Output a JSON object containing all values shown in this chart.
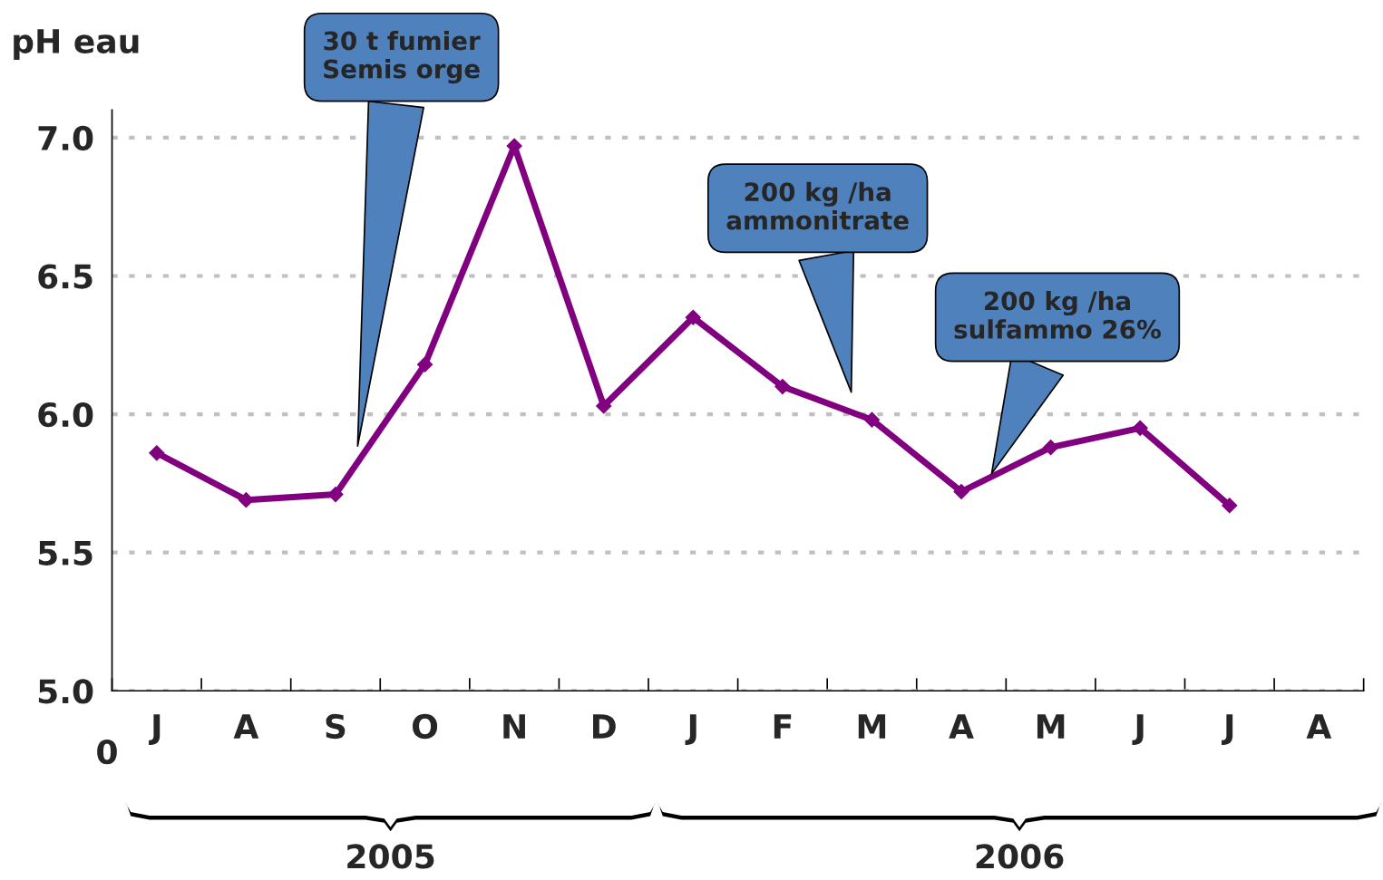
{
  "chart_data": {
    "type": "line",
    "ylabel": "pH eau",
    "categories": [
      "J",
      "A",
      "S",
      "O",
      "N",
      "D",
      "J",
      "F",
      "M",
      "A",
      "M",
      "J",
      "J",
      "A"
    ],
    "series": [
      {
        "color": "#800080",
        "values": [
          5.86,
          5.69,
          5.71,
          6.18,
          6.97,
          6.03,
          6.35,
          6.1,
          5.98,
          5.72,
          5.88,
          5.95,
          5.67,
          null
        ]
      }
    ],
    "ylim": [
      5.0,
      7.1
    ],
    "yticks": [
      {
        "value": 5,
        "label": "5.0"
      },
      {
        "value": 5.5,
        "label": "5.5"
      },
      {
        "value": 6,
        "label": "6.0"
      },
      {
        "value": 6.5,
        "label": "6.5"
      },
      {
        "value": 7,
        "label": "7.0"
      }
    ],
    "grid": "y",
    "marker": "diamond",
    "line_style": "solid",
    "legend": false,
    "annotations": [
      "30 t fumier\nSemis orge",
      "200 kg /ha\nammonitrate",
      "200 kg /ha\nsulfammo 26%",
      "2005",
      "2006",
      "0"
    ]
  }
}
